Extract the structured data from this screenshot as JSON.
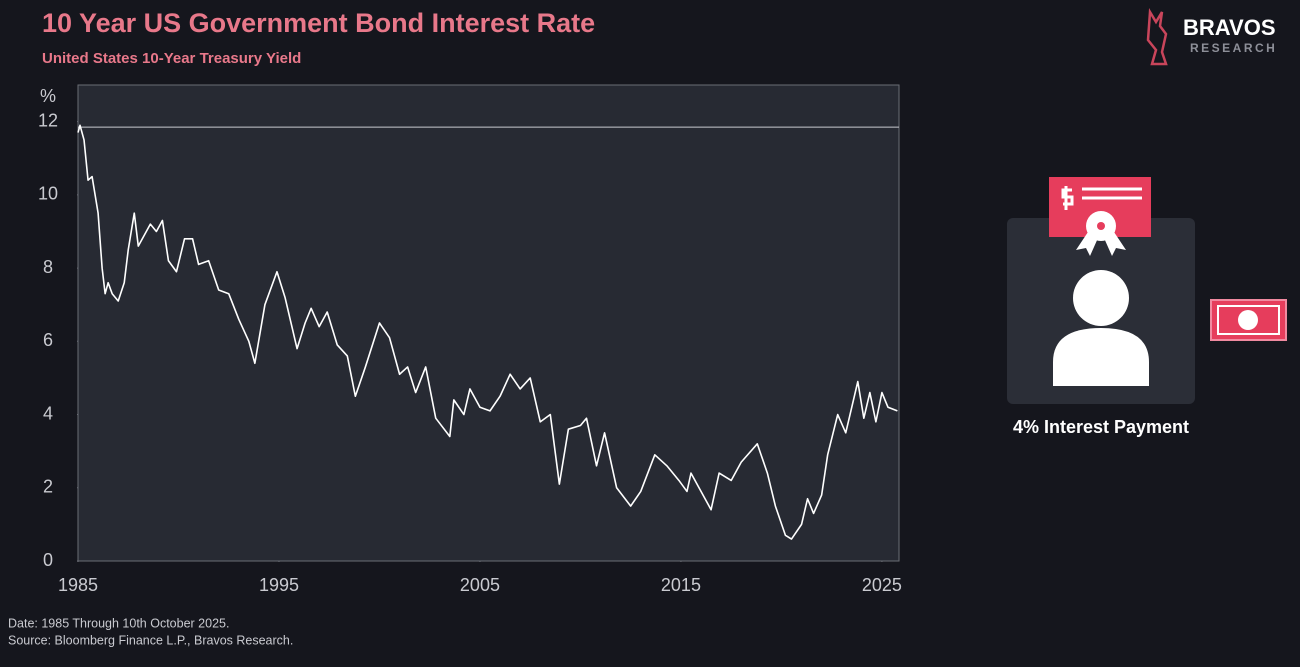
{
  "chart_data": {
    "type": "line",
    "title": "10 Year US Government Bond Interest Rate",
    "subtitle": "United States 10-Year Treasury Yield",
    "y_label": "%",
    "xlim": [
      1985,
      2025.85
    ],
    "ylim": [
      0,
      13
    ],
    "xticks": [
      1985,
      1995,
      2005,
      2015,
      2025
    ],
    "yticks": [
      0,
      2,
      4,
      6,
      8,
      10,
      12
    ],
    "reference_lines": [
      11.85
    ],
    "series": [
      {
        "color": "#ffffff",
        "x": [
          1985.0,
          1985.1,
          1985.3,
          1985.5,
          1985.7,
          1986.0,
          1986.2,
          1986.35,
          1986.5,
          1986.7,
          1987.0,
          1987.3,
          1987.5,
          1987.8,
          1988.0,
          1988.3,
          1988.6,
          1988.9,
          1989.2,
          1989.5,
          1989.9,
          1990.3,
          1990.7,
          1991.0,
          1991.5,
          1992.0,
          1992.5,
          1993.0,
          1993.5,
          1993.8,
          1994.3,
          1994.9,
          1995.3,
          1995.9,
          1996.3,
          1996.6,
          1997.0,
          1997.4,
          1997.9,
          1998.4,
          1998.8,
          1999.3,
          2000.0,
          2000.5,
          2001.0,
          2001.4,
          2001.8,
          2002.3,
          2002.8,
          2003.5,
          2003.7,
          2004.2,
          2004.5,
          2005.0,
          2005.5,
          2006.0,
          2006.5,
          2007.0,
          2007.5,
          2008.0,
          2008.5,
          2008.95,
          2009.4,
          2010.0,
          2010.3,
          2010.8,
          2011.2,
          2011.8,
          2012.5,
          2013.0,
          2013.7,
          2014.3,
          2014.9,
          2015.3,
          2015.5,
          2016.5,
          2016.9,
          2017.5,
          2018.0,
          2018.8,
          2019.3,
          2019.7,
          2020.2,
          2020.5,
          2021.0,
          2021.3,
          2021.6,
          2022.0,
          2022.3,
          2022.8,
          2023.2,
          2023.8,
          2024.1,
          2024.4,
          2024.7,
          2025.0,
          2025.3,
          2025.77
        ],
        "values": [
          11.7,
          11.9,
          11.5,
          10.4,
          10.5,
          9.5,
          8.0,
          7.3,
          7.6,
          7.3,
          7.1,
          7.6,
          8.5,
          9.5,
          8.6,
          8.9,
          9.2,
          9.0,
          9.3,
          8.2,
          7.9,
          8.8,
          8.8,
          8.1,
          8.2,
          7.4,
          7.3,
          6.6,
          6.0,
          5.4,
          7.0,
          7.9,
          7.2,
          5.8,
          6.5,
          6.9,
          6.4,
          6.8,
          5.9,
          5.6,
          4.5,
          5.3,
          6.5,
          6.1,
          5.1,
          5.3,
          4.6,
          5.3,
          3.9,
          3.4,
          4.4,
          4.0,
          4.7,
          4.2,
          4.1,
          4.5,
          5.1,
          4.7,
          5.0,
          3.8,
          4.0,
          2.1,
          3.6,
          3.7,
          3.9,
          2.6,
          3.5,
          2.0,
          1.5,
          1.9,
          2.9,
          2.6,
          2.2,
          1.9,
          2.4,
          1.4,
          2.4,
          2.2,
          2.7,
          3.2,
          2.4,
          1.5,
          0.7,
          0.6,
          1.0,
          1.7,
          1.3,
          1.8,
          2.9,
          4.0,
          3.5,
          4.9,
          3.9,
          4.6,
          3.8,
          4.6,
          4.2,
          4.1
        ]
      }
    ]
  },
  "side_caption": "4% Interest Payment",
  "brand": {
    "name": "BRAVOS",
    "tagline": "RESEARCH"
  },
  "footnotes": [
    "Date: 1985 Through 10th October 2025.",
    "Source: Bloomberg Finance L.P., Bravos Research."
  ]
}
